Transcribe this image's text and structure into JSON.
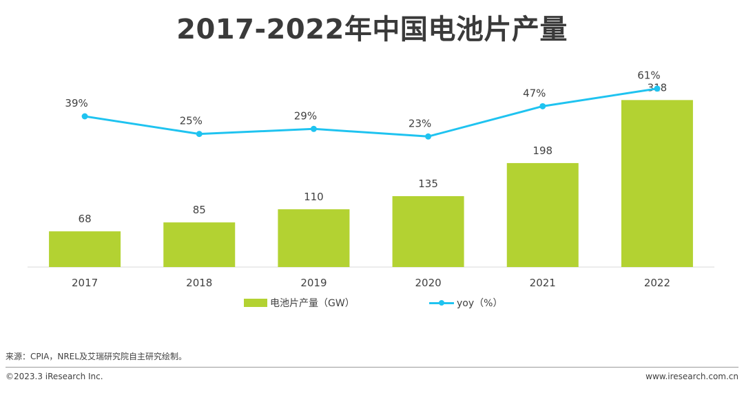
{
  "title": "2017-2022年中国电池片产量",
  "chart_data": {
    "type": "bar",
    "categories": [
      "2017",
      "2018",
      "2019",
      "2020",
      "2021",
      "2022"
    ],
    "series": [
      {
        "name": "电池片产量（GW）",
        "type": "bar",
        "values": [
          68,
          85,
          110,
          135,
          198,
          318
        ],
        "labels": [
          "68",
          "85",
          "110",
          "135",
          "198",
          "318"
        ],
        "color": "#b3d232"
      },
      {
        "name": "yoy（%）",
        "type": "line",
        "values": [
          39,
          25,
          29,
          23,
          47,
          61
        ],
        "labels": [
          "39%",
          "25%",
          "29%",
          "23%",
          "47%",
          "61%"
        ],
        "color": "#1fc3f0"
      }
    ],
    "xlabel": "",
    "ylabel": "",
    "grid": false,
    "legend_position": "bottom"
  },
  "source": "来源：CPIA，NREL及艾瑞研究院自主研究绘制。",
  "copyright": "©2023.3 iResearch Inc.",
  "website": "www.iresearch.com.cn"
}
